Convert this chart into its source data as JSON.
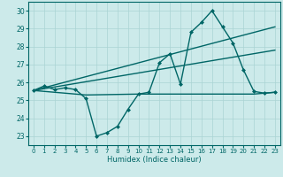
{
  "title": "",
  "xlabel": "Humidex (Indice chaleur)",
  "background_color": "#cceaea",
  "grid_color": "#aad4d4",
  "line_color": "#006666",
  "xlim": [
    -0.5,
    23.5
  ],
  "ylim": [
    22.5,
    30.5
  ],
  "x_ticks": [
    0,
    1,
    2,
    3,
    4,
    5,
    6,
    7,
    8,
    9,
    10,
    11,
    12,
    13,
    14,
    15,
    16,
    17,
    18,
    19,
    20,
    21,
    22,
    23
  ],
  "y_ticks": [
    23,
    24,
    25,
    26,
    27,
    28,
    29,
    30
  ],
  "series": [
    {
      "x": [
        0,
        1,
        2,
        3,
        4,
        5,
        6,
        7,
        8,
        9,
        10,
        11,
        12,
        13,
        14,
        15,
        16,
        17,
        18,
        19,
        20,
        21,
        22,
        23
      ],
      "y": [
        25.55,
        25.8,
        25.6,
        25.7,
        25.6,
        25.1,
        23.0,
        23.2,
        23.55,
        24.5,
        25.35,
        25.45,
        27.1,
        27.6,
        25.9,
        28.8,
        29.35,
        30.0,
        29.1,
        28.2,
        26.7,
        25.5,
        25.4,
        25.45
      ],
      "marker": "D",
      "markersize": 2.0,
      "linewidth": 1.0
    },
    {
      "x": [
        0,
        23
      ],
      "y": [
        25.55,
        29.1
      ],
      "marker": null,
      "linewidth": 1.0
    },
    {
      "x": [
        0,
        23
      ],
      "y": [
        25.55,
        27.8
      ],
      "marker": null,
      "linewidth": 1.0
    },
    {
      "x": [
        0,
        5,
        10,
        14,
        17,
        21,
        23
      ],
      "y": [
        25.55,
        25.3,
        25.35,
        25.35,
        25.35,
        25.35,
        25.45
      ],
      "marker": null,
      "linewidth": 1.0
    }
  ]
}
